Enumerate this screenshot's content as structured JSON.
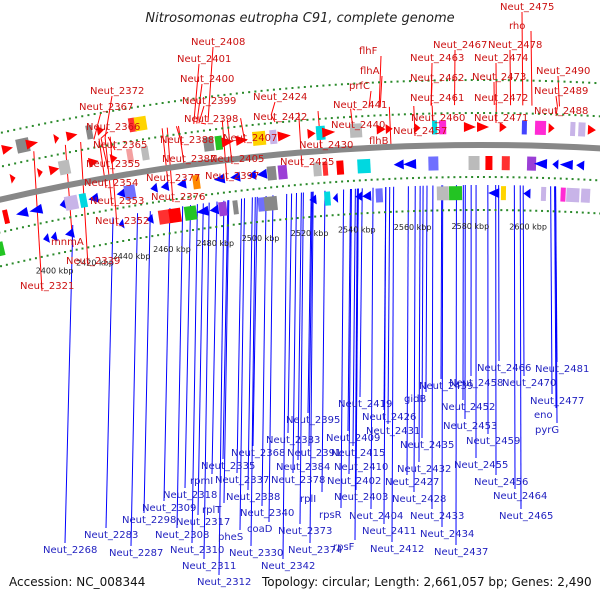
{
  "title": "Nitrosomonas eutropha C91, complete genome",
  "footer": {
    "accession": "Accession: NC_008344",
    "stats": "Topology: circular; Length: 2,661,057 bp; Genes: 2,490"
  },
  "colors": {
    "forward": "#ff0000",
    "reverse": "#0000ff",
    "backbone": "#888888",
    "tick_dots": "#2b8a2b"
  },
  "tick_labels": [
    "2400 kbp",
    "2420 kbp",
    "2440 kbp",
    "2460 kbp",
    "2480 kbp",
    "2500 kbp",
    "2520 kbp",
    "2540 kbp",
    "2560 kbp",
    "2580 kbp",
    "2600 kbp"
  ],
  "forward_labels": [
    "Neut_2321",
    "Neut_2339",
    "mnmA",
    "Neut_2352",
    "Neut_2353",
    "Neut_2354",
    "Neut_2355",
    "Neut_2365",
    "Neut_2366",
    "Neut_2367",
    "Neut_2372",
    "Neut_2376",
    "Neut_2377",
    "Neut_2387",
    "Neut_2388",
    "Neut_2397",
    "Neut_2398",
    "Neut_2399",
    "Neut_2400",
    "Neut_2401",
    "Neut_2408",
    "Neut_2405",
    "Neut_2407",
    "Neut_2424",
    "Neut_2422",
    "Neut_2425",
    "Neut_2430",
    "flhF",
    "flhA",
    "prfC",
    "Neut_2441",
    "Neut_2440",
    "flhB",
    "Neut_2457",
    "Neut_2460",
    "Neut_2461",
    "Neut_2462",
    "Neut_2463",
    "Neut_2467",
    "Neut_2475",
    "rho",
    "Neut_2478",
    "Neut_2474",
    "Neut_2473",
    "Neut_2472",
    "Neut_2471",
    "Neut_2490",
    "Neut_2489",
    "Neut_2488"
  ],
  "reverse_labels": [
    "Neut_2268",
    "Neut_2283",
    "Neut_2287",
    "Neut_2298",
    "Neut_2308",
    "Neut_2309",
    "Neut_2310",
    "Neut_2311",
    "Neut_2312",
    "rpmI",
    "Neut_2318",
    "rplT",
    "Neut_2317",
    "Neut_2335",
    "pheS",
    "Neut_2330",
    "Neut_2337",
    "Neut_2338",
    "Neut_2340",
    "coaD",
    "Neut_2342",
    "Neut_2368",
    "Neut_2374",
    "Neut_2373",
    "Neut_2383",
    "Neut_2384",
    "Neut_2378",
    "Neut_2395",
    "Neut_2391",
    "rplI",
    "rpsR",
    "rpsF",
    "Neut_2409",
    "Neut_2415",
    "Neut_2410",
    "Neut_2402",
    "Neut_2403",
    "Neut_2404",
    "Neut_2411",
    "Neut_2412",
    "Neut_2419",
    "Neut_2426",
    "Neut_2431",
    "Neut_2435",
    "Neut_2432",
    "Neut_2427",
    "Neut_2428",
    "Neut_2433",
    "Neut_2434",
    "Neut_2437",
    "Neut_2439",
    "gidB",
    "Neut_2458",
    "Neut_2452",
    "Neut_2453",
    "Neut_2459",
    "Neut_2455",
    "Neut_2456",
    "Neut_2466",
    "Neut_2470",
    "Neut_2464",
    "Neut_2465",
    "Neut_2481",
    "Neut_2477",
    "eno",
    "pyrG"
  ]
}
